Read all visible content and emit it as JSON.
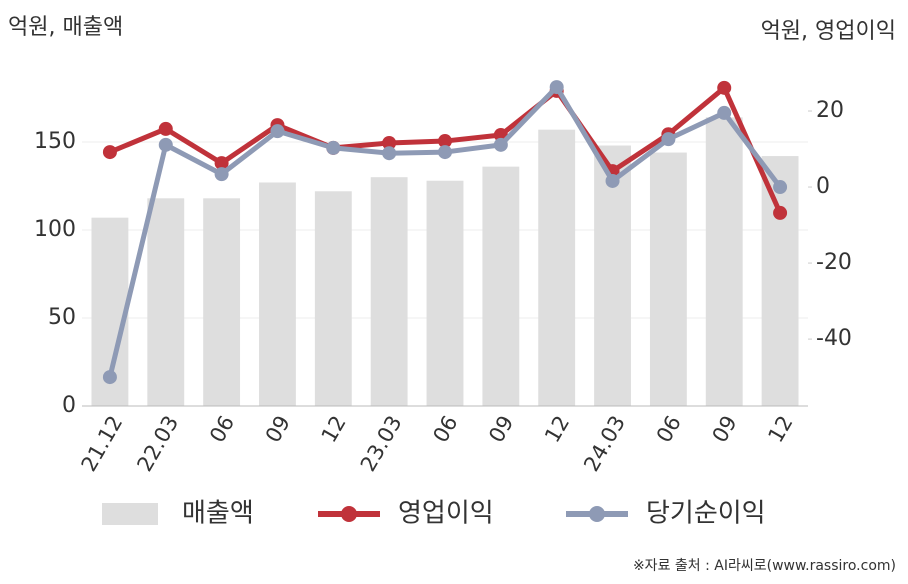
{
  "chart_data": {
    "type": "bar-line",
    "y_label": "억원, 매출액",
    "y2_label": "억원, 영업이익",
    "source": "※자료 출처 : AI라씨로(www.rassiro.com)",
    "categories": [
      "21.12",
      "22.03",
      "06",
      "09",
      "12",
      "23.03",
      "06",
      "09",
      "12",
      "24.03",
      "06",
      "09",
      "12"
    ],
    "series": [
      {
        "name": "매출액",
        "type": "bar",
        "color": "#dedede",
        "values": [
          107,
          118,
          118,
          127,
          122,
          130,
          128,
          136,
          157,
          148,
          144,
          164,
          142
        ]
      },
      {
        "name": "영업이익",
        "type": "line",
        "axis": "y2",
        "color": "#c0323a",
        "values": [
          9.2,
          15.3,
          6.3,
          16.3,
          10.3,
          11.6,
          12.1,
          13.7,
          25.3,
          4.2,
          13.9,
          26.1,
          -6.8
        ]
      },
      {
        "name": "당기순이익",
        "type": "line",
        "axis": "y2",
        "color": "#8e9ab5",
        "values": [
          -50,
          11.1,
          3.4,
          14.7,
          10.3,
          8.9,
          9.2,
          11.1,
          26.3,
          1.6,
          12.6,
          19.5,
          0
        ]
      }
    ],
    "ylim": [
      0,
      200
    ],
    "yticks": [
      0,
      50,
      100,
      150
    ],
    "y2lim": [
      -57.6,
      35
    ],
    "y2ticks": [
      -40,
      -20,
      0,
      20
    ],
    "grid": true
  }
}
